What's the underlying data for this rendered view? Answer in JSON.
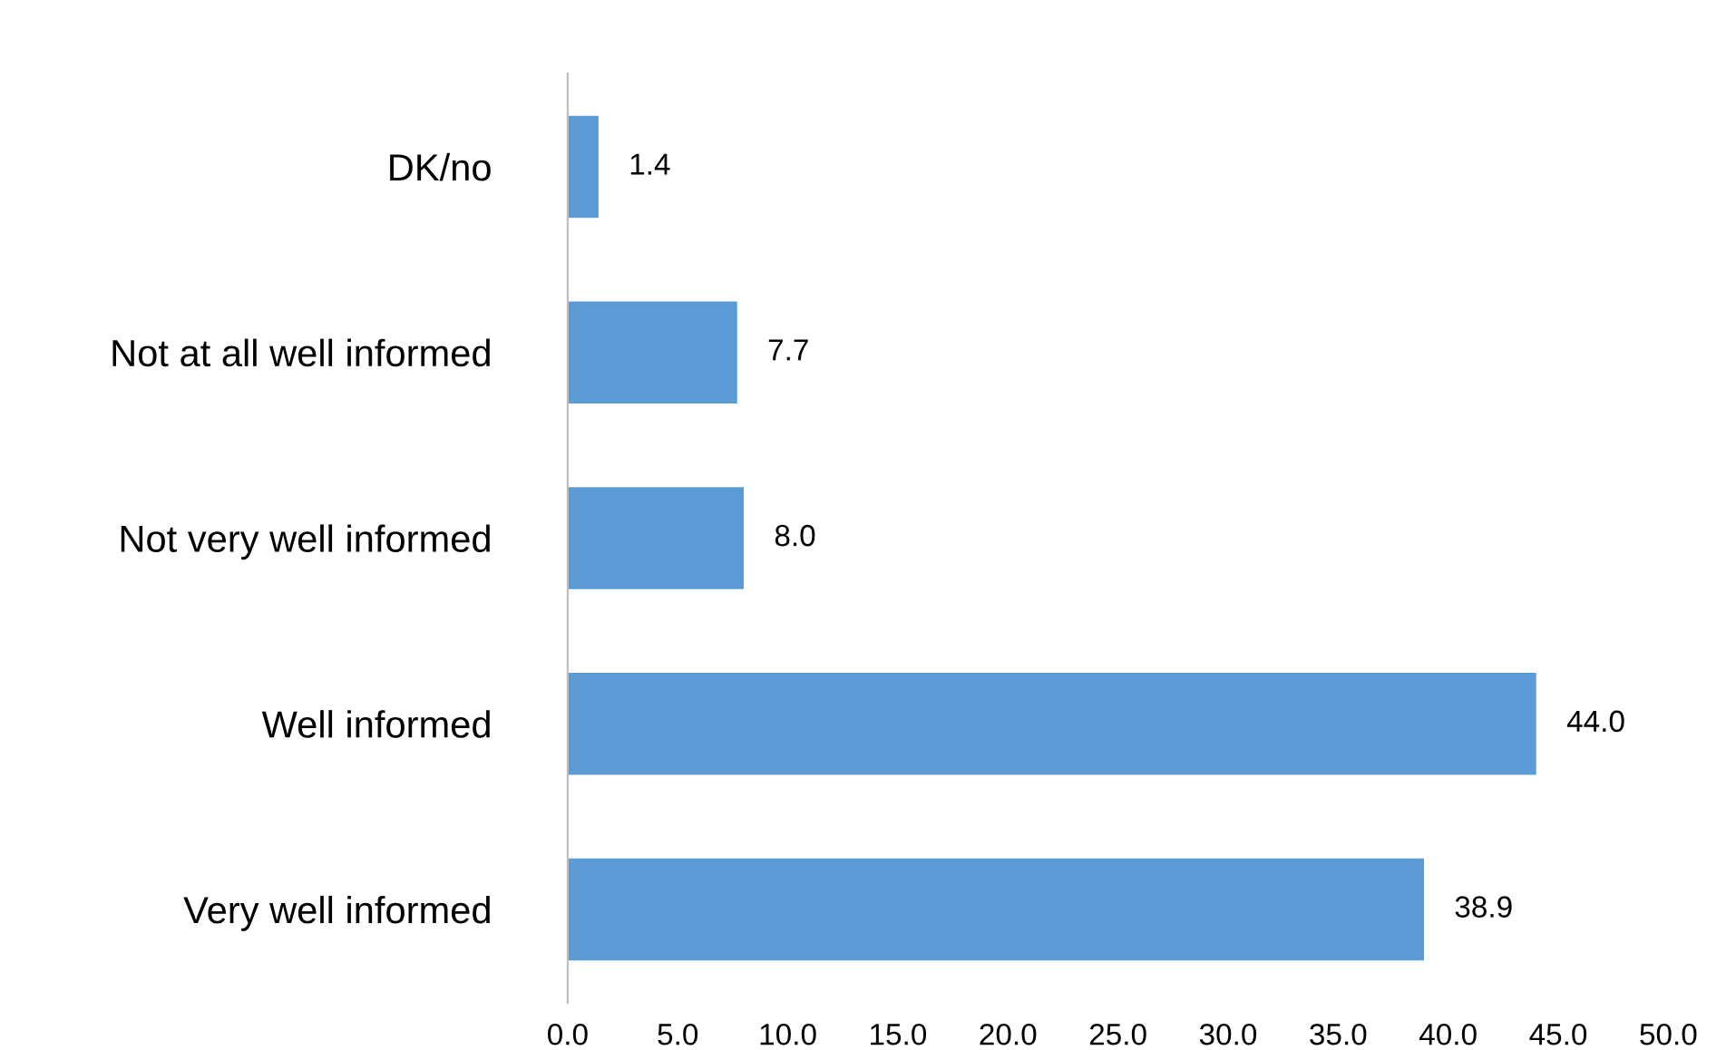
{
  "chart_data": {
    "type": "bar",
    "orientation": "horizontal",
    "categories": [
      "DK/no",
      "Not at all well informed",
      "Not very well informed",
      "Well informed",
      "Very well informed"
    ],
    "values": [
      1.4,
      7.7,
      8.0,
      44.0,
      38.9
    ],
    "value_labels": [
      "1.4",
      "7.7",
      "8.0",
      "44.0",
      "38.9"
    ],
    "color": "#5b9bd5",
    "xlim": [
      0,
      50
    ],
    "xticks": [
      {
        "value": 0,
        "label": "0.0"
      },
      {
        "value": 5,
        "label": "5.0"
      },
      {
        "value": 10,
        "label": "10.0"
      },
      {
        "value": 15,
        "label": "15.0"
      },
      {
        "value": 20,
        "label": "20.0"
      },
      {
        "value": 25,
        "label": "25.0"
      },
      {
        "value": 30,
        "label": "30.0"
      },
      {
        "value": 35,
        "label": "35.0"
      },
      {
        "value": 40,
        "label": "40.0"
      },
      {
        "value": 45,
        "label": "45.0"
      },
      {
        "value": 50,
        "label": "50.0"
      }
    ],
    "grid": false,
    "legend": false
  }
}
